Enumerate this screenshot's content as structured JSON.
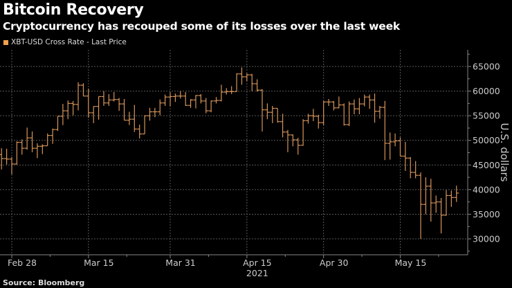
{
  "header": {
    "title": "Bitcoin Recovery",
    "subtitle": "Cryptocurrency has recouped some of its losses over the last week"
  },
  "legend": {
    "label": "XBT-USD Cross Rate - Last Price",
    "color": "#f2a04e"
  },
  "source": "Source: Bloomberg",
  "colors": {
    "bar": "#d8955a",
    "grid": "#5a5a5a",
    "axis": "#888888",
    "text": "#cccccc"
  },
  "chart_data": {
    "type": "ohlc",
    "title": "Bitcoin Recovery",
    "ylabel": "U.S. dollars",
    "xlabel": "2021",
    "ylim": [
      26770,
      68380
    ],
    "xlim_days": [
      -0.3,
      91.2
    ],
    "grid": true,
    "legend_position": "top-left",
    "start_date": "2021-02-26",
    "y_ticks": [
      30000,
      35000,
      40000,
      45000,
      50000,
      55000,
      60000,
      65000
    ],
    "y_tick_labels": [
      "30000",
      "35000",
      "40000",
      "45000",
      "50000",
      "55000",
      "60000",
      "65000"
    ],
    "x_ticks": [
      {
        "day": 2,
        "label": "Feb 28"
      },
      {
        "day": 17,
        "label": "Mar 15"
      },
      {
        "day": 33,
        "label": "Mar 31"
      },
      {
        "day": 48,
        "label": "Apr 15"
      },
      {
        "day": 63,
        "label": "Apr 30"
      },
      {
        "day": 78,
        "label": "May 15"
      }
    ],
    "year_label": {
      "day": 48,
      "label": "2021"
    },
    "series": [
      {
        "name": "XBT-USD Cross Rate - Last Price",
        "ohlc": [
          [
            47100,
            48400,
            44100,
            46300
          ],
          [
            46300,
            48300,
            45100,
            46200
          ],
          [
            46200,
            46600,
            43100,
            45200
          ],
          [
            45200,
            49800,
            45100,
            49600
          ],
          [
            49600,
            50200,
            47100,
            48400
          ],
          [
            48400,
            52600,
            48100,
            50500
          ],
          [
            50500,
            51800,
            47600,
            48400
          ],
          [
            48400,
            49400,
            46400,
            48800
          ],
          [
            48800,
            49200,
            47200,
            48900
          ],
          [
            48900,
            51400,
            48900,
            51000
          ],
          [
            51000,
            52400,
            49300,
            52200
          ],
          [
            52200,
            54900,
            51900,
            54900
          ],
          [
            54900,
            57400,
            53100,
            56000
          ],
          [
            56000,
            58100,
            54300,
            57500
          ],
          [
            57500,
            58000,
            55100,
            57300
          ],
          [
            57300,
            61800,
            56100,
            61200
          ],
          [
            61200,
            61600,
            59000,
            59000
          ],
          [
            59000,
            60500,
            54600,
            55600
          ],
          [
            55600,
            56900,
            53500,
            56900
          ],
          [
            56900,
            58900,
            54200,
            58900
          ],
          [
            58900,
            60000,
            57000,
            57600
          ],
          [
            57600,
            59400,
            57000,
            58200
          ],
          [
            58200,
            59800,
            57900,
            58300
          ],
          [
            58300,
            58600,
            56000,
            57400
          ],
          [
            57400,
            58400,
            54100,
            54100
          ],
          [
            54100,
            55800,
            53100,
            54300
          ],
          [
            54300,
            57200,
            51700,
            52300
          ],
          [
            52300,
            53200,
            50400,
            51300
          ],
          [
            51300,
            55100,
            51300,
            55000
          ],
          [
            55000,
            56600,
            54000,
            55800
          ],
          [
            55800,
            56600,
            54700,
            55800
          ],
          [
            55800,
            58300,
            55100,
            57600
          ],
          [
            57600,
            59300,
            57000,
            58800
          ],
          [
            58800,
            59800,
            56900,
            58900
          ],
          [
            58900,
            59500,
            57800,
            59000
          ],
          [
            59000,
            60000,
            58500,
            59000
          ],
          [
            59000,
            59800,
            57000,
            57100
          ],
          [
            57100,
            58400,
            56600,
            58200
          ],
          [
            58200,
            59200,
            56500,
            59100
          ],
          [
            59100,
            59400,
            57500,
            58000
          ],
          [
            58000,
            58600,
            55500,
            56000
          ],
          [
            56000,
            58100,
            55700,
            58000
          ],
          [
            58000,
            58800,
            57500,
            58100
          ],
          [
            58100,
            61300,
            57900,
            59800
          ],
          [
            59800,
            60600,
            59300,
            59900
          ],
          [
            59900,
            61000,
            59400,
            59900
          ],
          [
            59900,
            63600,
            59900,
            63500
          ],
          [
            63500,
            64800,
            61300,
            62900
          ],
          [
            62900,
            63600,
            62000,
            63300
          ],
          [
            63300,
            63500,
            60000,
            61500
          ],
          [
            61500,
            62400,
            59900,
            60200
          ],
          [
            60200,
            60400,
            51800,
            56200
          ],
          [
            56200,
            57500,
            54300,
            55700
          ],
          [
            55700,
            57000,
            53500,
            56500
          ],
          [
            56500,
            56500,
            53600,
            53800
          ],
          [
            53800,
            55400,
            50600,
            51700
          ],
          [
            51700,
            52100,
            47600,
            51100
          ],
          [
            51100,
            51200,
            48800,
            50100
          ],
          [
            50100,
            50500,
            47100,
            49000
          ],
          [
            49000,
            54300,
            48900,
            54000
          ],
          [
            54000,
            55400,
            53400,
            55000
          ],
          [
            55000,
            56400,
            53900,
            54900
          ],
          [
            54900,
            55200,
            52400,
            53600
          ],
          [
            53600,
            58000,
            53100,
            57800
          ],
          [
            57800,
            58400,
            57000,
            57800
          ],
          [
            57800,
            58000,
            56100,
            56600
          ],
          [
            56600,
            58900,
            56500,
            57200
          ],
          [
            57200,
            57500,
            53000,
            53200
          ],
          [
            53200,
            57900,
            52900,
            57400
          ],
          [
            57400,
            58300,
            55300,
            56400
          ],
          [
            56400,
            58600,
            55300,
            57400
          ],
          [
            57400,
            59300,
            56900,
            58800
          ],
          [
            58800,
            59300,
            56400,
            58200
          ],
          [
            58200,
            59500,
            53600,
            55900
          ],
          [
            55900,
            57000,
            54400,
            56700
          ],
          [
            56700,
            58000,
            46000,
            49400
          ],
          [
            49400,
            51600,
            46100,
            49700
          ],
          [
            49700,
            51400,
            48800,
            49900
          ],
          [
            49900,
            50600,
            46800,
            46800
          ],
          [
            46800,
            49700,
            43800,
            46400
          ],
          [
            46400,
            46600,
            42300,
            43500
          ],
          [
            43500,
            45800,
            42300,
            42900
          ],
          [
            42900,
            43500,
            30000,
            37000
          ],
          [
            37000,
            42500,
            35000,
            40700
          ],
          [
            40700,
            42200,
            33500,
            37300
          ],
          [
            37300,
            38800,
            35300,
            37500
          ],
          [
            37500,
            38300,
            31100,
            34800
          ],
          [
            34800,
            39900,
            34700,
            38800
          ],
          [
            38800,
            39800,
            36500,
            38400
          ],
          [
            38400,
            40800,
            37500,
            39300
          ]
        ]
      }
    ]
  }
}
